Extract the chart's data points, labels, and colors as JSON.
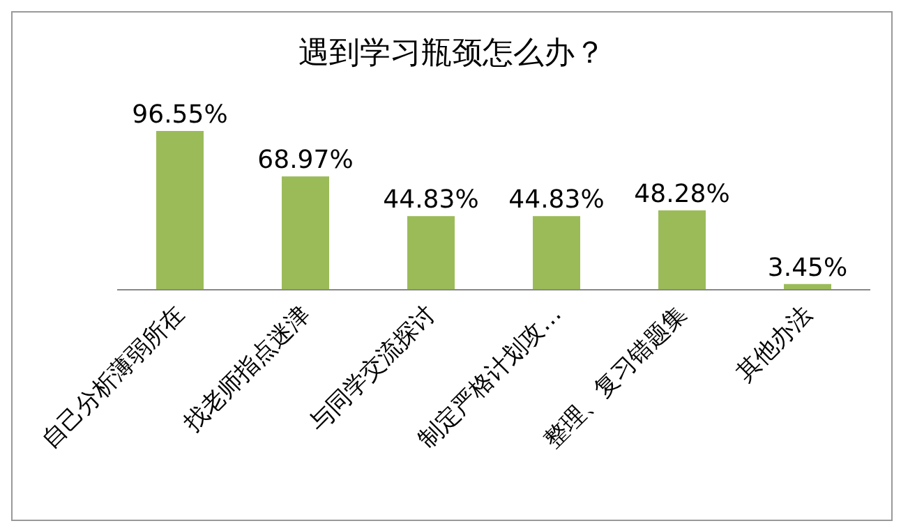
{
  "chart_data": {
    "type": "bar",
    "title": "遇到学习瓶颈怎么办？",
    "categories": [
      "自己分析薄弱所在",
      "找老师指点迷津",
      "与同学交流探讨",
      "制定严格计划攻…",
      "整理、复习错题集",
      "其他办法"
    ],
    "values": [
      96.55,
      68.97,
      44.83,
      44.83,
      48.28,
      3.45
    ],
    "value_labels": [
      "96.55%",
      "68.97%",
      "44.83%",
      "44.83%",
      "48.28%",
      "3.45%"
    ],
    "color": "#9bbb59",
    "tick_labels": "x"
  }
}
